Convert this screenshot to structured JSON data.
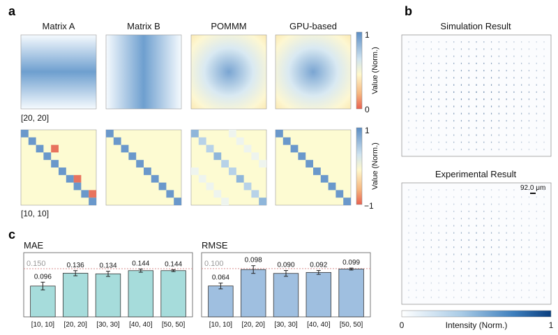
{
  "panel_letters": {
    "a": "a",
    "b": "b",
    "c": "c"
  },
  "panel_a": {
    "column_titles": [
      "Matrix A",
      "Matrix B",
      "POMMM",
      "GPU-based"
    ],
    "row_labels": [
      "[20, 20]",
      "[10, 10]"
    ],
    "colorbar_top": {
      "label": "Value (Norm.)",
      "max": "1",
      "min": "0"
    },
    "colorbar_bottom": {
      "label": "Value (Norm.)",
      "max": "1",
      "min": "−1"
    }
  },
  "panel_b": {
    "sim_title": "Simulation Result",
    "exp_title": "Experimental Result",
    "scale_label": "92.0 μm",
    "colorbar": {
      "label": "Intensity (Norm.)",
      "min": "0",
      "max": "1"
    }
  },
  "colors": {
    "mae_bar": "#a6dcdb",
    "rmse_bar": "#9fbfe0",
    "dashed": "#d98c8c"
  },
  "chart_data": [
    {
      "type": "bar",
      "title": "MAE",
      "categories": [
        "[10, 10]",
        "[20, 20]",
        "[30, 30]",
        "[40, 40]",
        "[50, 50]"
      ],
      "values": [
        0.096,
        0.136,
        0.134,
        0.144,
        0.144
      ],
      "value_labels": [
        "0.096",
        "0.136",
        "0.134",
        "0.144",
        "0.144"
      ],
      "errors": [
        0.012,
        0.008,
        0.008,
        0.005,
        0.003
      ],
      "reference_line": 0.15,
      "reference_label": "0.150",
      "ylim": [
        0,
        0.2
      ]
    },
    {
      "type": "bar",
      "title": "RMSE",
      "categories": [
        "[10, 10]",
        "[20, 20]",
        "[30, 30]",
        "[40, 40]",
        "[50, 50]"
      ],
      "values": [
        0.064,
        0.098,
        0.09,
        0.092,
        0.099
      ],
      "value_labels": [
        "0.064",
        "0.098",
        "0.090",
        "0.092",
        "0.099"
      ],
      "errors": [
        0.006,
        0.008,
        0.006,
        0.004,
        0.002
      ],
      "reference_line": 0.1,
      "reference_label": "0.100",
      "ylim": [
        0,
        0.133
      ]
    }
  ]
}
